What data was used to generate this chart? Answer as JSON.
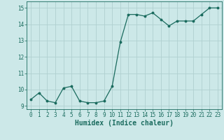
{
  "x": [
    0,
    1,
    2,
    3,
    4,
    5,
    6,
    7,
    8,
    9,
    10,
    11,
    12,
    13,
    14,
    15,
    16,
    17,
    18,
    19,
    20,
    21,
    22,
    23
  ],
  "y": [
    9.4,
    9.8,
    9.3,
    9.2,
    10.1,
    10.2,
    9.3,
    9.2,
    9.2,
    9.3,
    10.2,
    12.9,
    14.6,
    14.6,
    14.5,
    14.7,
    14.3,
    13.9,
    14.2,
    14.2,
    14.2,
    14.6,
    15.0,
    15.0
  ],
  "line_color": "#1a6b5e",
  "bg_color": "#cce8e8",
  "grid_color": "#b0d0d0",
  "xlabel": "Humidex (Indice chaleur)",
  "ylim": [
    8.8,
    15.4
  ],
  "xlim": [
    -0.5,
    23.5
  ],
  "yticks": [
    9,
    10,
    11,
    12,
    13,
    14,
    15
  ],
  "xticks": [
    0,
    1,
    2,
    3,
    4,
    5,
    6,
    7,
    8,
    9,
    10,
    11,
    12,
    13,
    14,
    15,
    16,
    17,
    18,
    19,
    20,
    21,
    22,
    23
  ],
  "tick_fontsize": 5.5,
  "xlabel_fontsize": 7.0,
  "marker_size": 1.8,
  "line_width": 0.9
}
